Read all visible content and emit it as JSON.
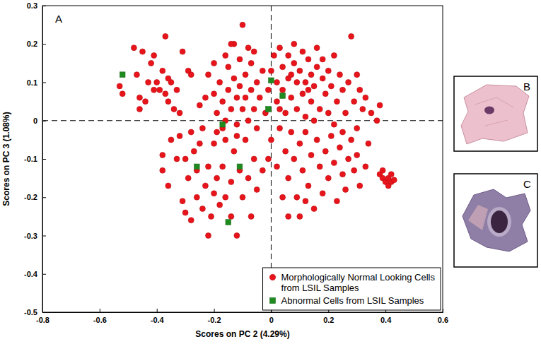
{
  "chart_data": {
    "type": "scatter",
    "x_label": "Scores on PC 2 (4.29%)",
    "y_label": "Scores on PC 3 (1.08%)",
    "annotations": [
      "A",
      "B",
      "C"
    ],
    "xlim": [
      -0.8,
      0.6
    ],
    "ylim": [
      -0.5,
      0.3
    ],
    "xticks": [
      -0.8,
      -0.6,
      -0.4,
      -0.2,
      0,
      0.2,
      0.4,
      0.6
    ],
    "yticks": [
      -0.5,
      -0.4,
      -0.3,
      -0.2,
      -0.1,
      0,
      0.1,
      0.2,
      0.3
    ],
    "vlines": [
      0
    ],
    "hlines": [
      0
    ],
    "legend": "lower right",
    "grid": false,
    "series": [
      {
        "name": "Morphologically Normal Looking Cells from LSIL Samples",
        "color": "#e8141b",
        "marker": "circle",
        "x": [
          -0.53,
          -0.52,
          -0.48,
          -0.45,
          -0.47,
          -0.46,
          -0.46,
          -0.43,
          -0.42,
          -0.41,
          -0.4,
          -0.39,
          -0.38,
          -0.37,
          -0.37,
          -0.36,
          -0.35,
          -0.34,
          -0.33,
          -0.32,
          -0.31,
          -0.29,
          -0.28,
          -0.25,
          -0.41,
          -0.44,
          -0.36,
          -0.38,
          -0.38,
          -0.36,
          -0.35,
          -0.33,
          -0.32,
          -0.31,
          -0.3,
          -0.28,
          -0.29,
          -0.27,
          -0.26,
          -0.26,
          -0.24,
          -0.25,
          -0.23,
          -0.22,
          -0.21,
          -0.2,
          -0.2,
          -0.19,
          -0.18,
          -0.22,
          -0.17,
          -0.16,
          -0.14,
          -0.14,
          -0.13,
          -0.12,
          -0.11,
          -0.1,
          -0.09,
          -0.08,
          -0.07,
          -0.06,
          -0.05,
          -0.03,
          -0.28,
          -0.24,
          -0.19,
          -0.3,
          -0.16,
          -0.12,
          -0.22,
          -0.2,
          -0.19,
          -0.18,
          -0.17,
          -0.16,
          -0.15,
          -0.15,
          -0.14,
          -0.13,
          -0.12,
          -0.12,
          -0.11,
          -0.11,
          -0.1,
          -0.09,
          -0.09,
          -0.08,
          -0.07,
          -0.07,
          -0.06,
          -0.05,
          -0.05,
          -0.04,
          -0.03,
          -0.02,
          -0.01,
          -0.13,
          -0.1,
          -0.08,
          -0.16,
          -0.06,
          -0.2,
          -0.14,
          -0.23,
          -0.17,
          0.0,
          0.01,
          0.02,
          0.02,
          0.03,
          0.04,
          0.04,
          0.05,
          0.06,
          0.06,
          0.07,
          0.08,
          0.08,
          0.09,
          0.09,
          0.1,
          0.11,
          0.11,
          0.12,
          0.12,
          0.13,
          0.14,
          0.14,
          0.15,
          0.16,
          0.16,
          0.17,
          0.18,
          0.19,
          0.2,
          0.2,
          0.21,
          0.22,
          0.23,
          0.24,
          0.25,
          0.26,
          0.27,
          0.28,
          0.29,
          0.3,
          0.31,
          0.32,
          0.33,
          0.35,
          0.37,
          0.38,
          0.22,
          0.25,
          0.3,
          0.15,
          0.18,
          0.13,
          0.07,
          0.03,
          0.0,
          0.02,
          0.03,
          0.05,
          0.06,
          0.07,
          0.08,
          0.09,
          0.1,
          0.11,
          0.12,
          0.13,
          0.14,
          0.15,
          0.16,
          0.17,
          0.18,
          0.19,
          0.2,
          0.21,
          0.22,
          0.23,
          0.24,
          0.25,
          0.26,
          0.27,
          0.28,
          0.29,
          0.3,
          0.31,
          0.33,
          0.34,
          0.12,
          0.1,
          0.04,
          -0.01,
          0.06,
          0.38,
          0.39,
          0.4,
          0.41,
          0.42,
          0.43,
          0.41,
          0.39,
          0.42
        ],
        "values": [
          0.09,
          0.07,
          0.19,
          0.18,
          0.12,
          0.06,
          0.03,
          0.1,
          0.15,
          0.08,
          0.1,
          0.08,
          0.13,
          0.22,
          0.07,
          0.05,
          0.1,
          0.03,
          0.08,
          0.02,
          0.18,
          0.13,
          0.12,
          0.04,
          0.17,
          0.05,
          0.11,
          -0.09,
          -0.13,
          -0.17,
          -0.05,
          -0.1,
          -0.04,
          -0.21,
          -0.24,
          -0.26,
          -0.15,
          -0.08,
          -0.2,
          -0.13,
          -0.23,
          -0.06,
          -0.17,
          -0.12,
          -0.25,
          -0.19,
          -0.06,
          -0.15,
          -0.22,
          -0.3,
          -0.12,
          -0.2,
          -0.25,
          -0.16,
          -0.08,
          -0.3,
          -0.13,
          -0.2,
          -0.05,
          -0.15,
          -0.25,
          -0.1,
          -0.18,
          -0.13,
          -0.03,
          -0.02,
          -0.03,
          -0.1,
          -0.05,
          -0.04,
          0.12,
          0.07,
          0.02,
          0.1,
          0.05,
          0.0,
          0.14,
          0.08,
          0.03,
          0.11,
          0.06,
          -0.01,
          0.16,
          0.09,
          0.03,
          0.12,
          0.06,
          0.0,
          0.08,
          0.15,
          0.03,
          0.1,
          -0.02,
          0.06,
          0.13,
          0.02,
          0.08,
          0.2,
          0.25,
          0.19,
          0.17,
          0.18,
          0.15,
          0.2,
          0.06,
          -0.02,
          0.13,
          0.17,
          0.1,
          0.05,
          0.19,
          0.14,
          0.08,
          0.02,
          0.17,
          0.11,
          0.06,
          0.15,
          0.2,
          0.1,
          0.03,
          0.13,
          0.18,
          0.07,
          0.1,
          0.01,
          0.16,
          0.12,
          0.05,
          0.09,
          0.14,
          0.19,
          0.03,
          0.11,
          0.07,
          0.13,
          0.02,
          0.09,
          0.17,
          0.05,
          0.12,
          0.08,
          0.02,
          0.1,
          0.22,
          0.05,
          0.12,
          0.08,
          0.03,
          0.06,
          0.02,
          0.0,
          0.04,
          -0.01,
          -0.03,
          -0.02,
          0.0,
          0.16,
          0.08,
          0.12,
          0.03,
          -0.05,
          -0.12,
          -0.02,
          -0.08,
          -0.15,
          -0.03,
          -0.1,
          -0.2,
          -0.06,
          -0.13,
          -0.03,
          -0.17,
          -0.09,
          -0.23,
          -0.05,
          -0.12,
          -0.19,
          -0.08,
          -0.15,
          -0.04,
          -0.11,
          -0.21,
          -0.07,
          -0.14,
          -0.18,
          -0.1,
          -0.05,
          -0.13,
          -0.09,
          -0.17,
          -0.12,
          -0.06,
          -0.21,
          -0.25,
          -0.2,
          -0.1,
          -0.25,
          -0.14,
          -0.15,
          -0.16,
          -0.15,
          -0.16,
          -0.155,
          -0.17,
          -0.13,
          -0.14
        ]
      },
      {
        "name": "Abnormal Cells from LSIL Samples",
        "color": "#1f8a1f",
        "marker": "square",
        "x": [
          -0.52,
          0.0,
          0.04,
          -0.01,
          -0.17,
          -0.26,
          -0.11,
          -0.15
        ],
        "values": [
          0.12,
          0.105,
          0.065,
          0.03,
          -0.01,
          -0.12,
          -0.12,
          -0.265
        ]
      }
    ]
  }
}
